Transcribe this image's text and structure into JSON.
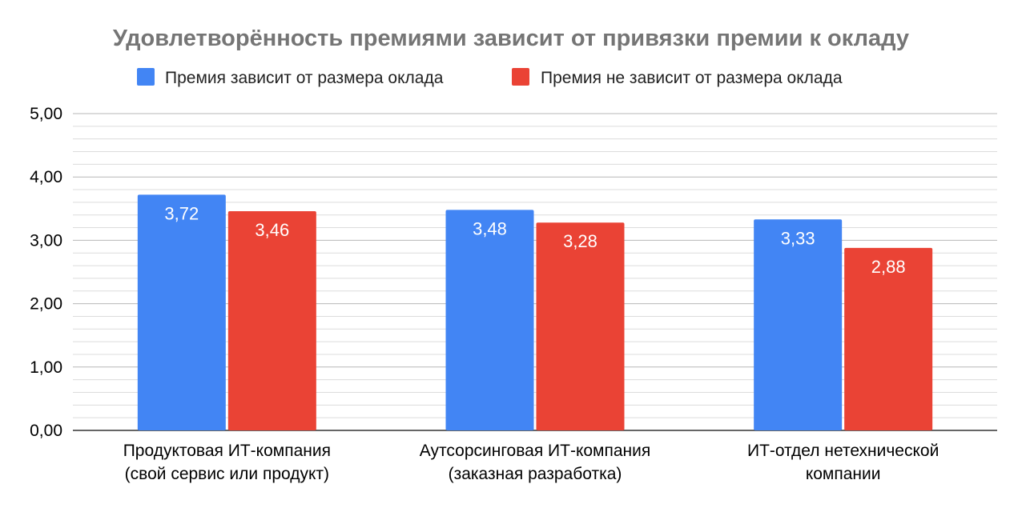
{
  "chart_data": {
    "type": "bar",
    "title": "Удовлетворённость премиями зависит от привязки премии к окладу",
    "xlabel": "",
    "ylabel": "",
    "ylim": [
      0,
      5
    ],
    "y_ticks": [
      "0,00",
      "1,00",
      "2,00",
      "3,00",
      "4,00",
      "5,00"
    ],
    "grid": true,
    "legend_position": "top",
    "categories": [
      [
        "Продуктовая ИТ-компания",
        "(свой сервис или продукт)"
      ],
      [
        "Аутсорсинговая ИТ-компания",
        "(заказная разработка)"
      ],
      [
        "ИТ-отдел нетехнической",
        "компании"
      ]
    ],
    "series": [
      {
        "name": "Премия зависит от размера оклада",
        "color": "#4285f4",
        "values": [
          3.72,
          3.48,
          3.33
        ],
        "labels": [
          "3,72",
          "3,48",
          "3,33"
        ]
      },
      {
        "name": "Премия не зависит от размера оклада",
        "color": "#ea4335",
        "values": [
          3.46,
          3.28,
          2.88
        ],
        "labels": [
          "3,46",
          "3,28",
          "2,88"
        ]
      }
    ]
  }
}
